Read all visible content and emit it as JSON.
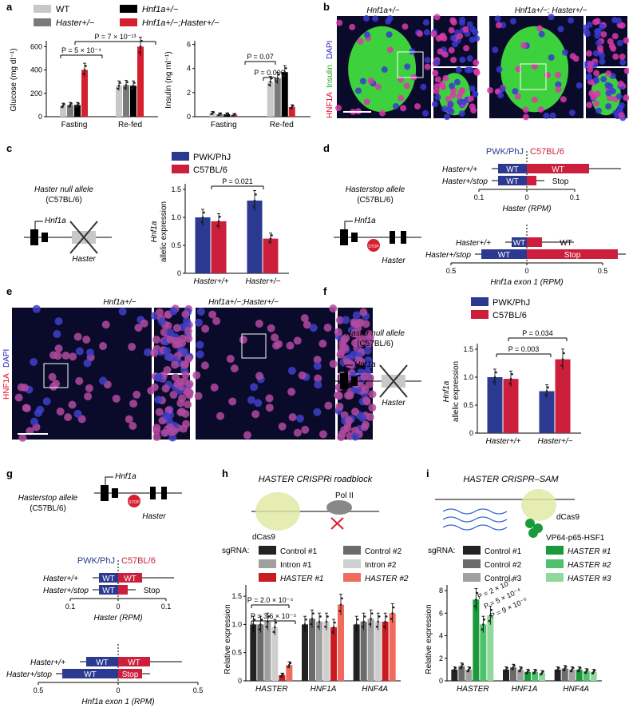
{
  "panel_letters": [
    "a",
    "b",
    "c",
    "d",
    "e",
    "f",
    "g",
    "h",
    "i"
  ],
  "colors": {
    "wt": "#c8c8c8",
    "haster_het": "#7a7a7a",
    "hnf1a_het": "#000000",
    "double_het": "#d6202f",
    "pwk": "#2b3990",
    "c57": "#cc1f3c",
    "hnf1a_red": "#e8001e",
    "green_stain": "#3dd13d"
  },
  "panel_a": {
    "legend": [
      "WT",
      "Haster+/−",
      "Hnf1a+/−",
      "Hnf1a+/−;Haster+/−"
    ],
    "glucose": {
      "ylabel": "Glucose (mg dl⁻¹)",
      "yticks": [
        "0",
        "200",
        "400",
        "600"
      ],
      "categories": [
        "Fasting",
        "Re-fed"
      ],
      "p_values": [
        "P = 5 × 10⁻⁴",
        "P = 7 × 10⁻¹³"
      ]
    },
    "insulin": {
      "ylabel": "Insulin (ng ml⁻¹)",
      "yticks": [
        "0",
        "2",
        "4",
        "6"
      ],
      "categories": [
        "Fasting",
        "Re-fed"
      ],
      "p_values": [
        "P = 0.07",
        "P = 0.006"
      ]
    }
  },
  "panel_b": {
    "titles": [
      "Hnf1a+/−",
      "Hnf1a+/−; Haster+/−"
    ],
    "side_label": [
      "HNF1A",
      "Insulin",
      "DAPI"
    ]
  },
  "panel_c": {
    "title": [
      "Haster null allele",
      "(C57BL/6)"
    ],
    "gene_labels": [
      "Hnf1a",
      "Haster"
    ],
    "legend": [
      "PWK/PhJ",
      "C57BL/6"
    ],
    "ylabel": [
      "Hnf1a",
      "allelic expression"
    ],
    "yticks": [
      "0",
      "0.5",
      "1.0",
      "1.5"
    ],
    "categories": [
      "Haster+/+",
      "Haster+/−"
    ],
    "p_value": "P = 0.021"
  },
  "panel_d": {
    "title": [
      "Hasterstop allele",
      "(C57BL/6)"
    ],
    "gene_labels": [
      "Hnf1a",
      "Haster",
      "STOP"
    ],
    "legend": [
      "PWK/PhJ",
      "C57BL/6"
    ],
    "rows": [
      "Haster+/+",
      "Haster+/stop"
    ],
    "bar_labels": [
      "WT",
      "WT",
      "WT",
      "Stop"
    ],
    "axis1": {
      "label": "Haster (RPM)",
      "ticks": [
        "0.1",
        "0",
        "0.1"
      ]
    },
    "axis2": {
      "label": "Hnf1a exon 1 (RPM)",
      "ticks": [
        "0.5",
        "0",
        "0.5"
      ]
    }
  },
  "panel_e": {
    "titles": [
      "Hnf1a+/−",
      "Hnf1a+/−;Haster+/−"
    ],
    "side_label": [
      "HNF1A",
      "DAPI"
    ]
  },
  "panel_f": {
    "title": [
      "Haster null allele",
      "(C57BL/6)"
    ],
    "gene_labels": [
      "Hnf1a",
      "Haster"
    ],
    "legend": [
      "PWK/PhJ",
      "C57BL/6"
    ],
    "ylabel": [
      "Hnf1a",
      "allelic expression"
    ],
    "yticks": [
      "0",
      "0.5",
      "1.0",
      "1.5"
    ],
    "categories": [
      "Haster+/+",
      "Haster+/−"
    ],
    "p_values": [
      "P = 0.003",
      "P = 0.034"
    ]
  },
  "panel_g": {
    "title": [
      "Hasterstop allele",
      "(C57BL/6)"
    ],
    "gene_labels": [
      "Hnf1a",
      "Haster",
      "STOP"
    ],
    "legend": [
      "PWK/PhJ",
      "C57BL/6"
    ],
    "rows": [
      "Haster+/+",
      "Haster+/stop"
    ],
    "bar_labels": [
      "WT",
      "WT",
      "WT",
      "Stop"
    ],
    "axis1": {
      "label": "Haster (RPM)",
      "ticks": [
        "0.1",
        "0",
        "0.1"
      ]
    },
    "axis2": {
      "label": "Hnf1a exon 1 (RPM)",
      "ticks": [
        "0.5",
        "0",
        "0.5"
      ]
    }
  },
  "panel_h": {
    "title": "HASTER CRISPRi roadblock",
    "diagram_labels": [
      "Pol II",
      "dCas9"
    ],
    "sgrna_label": "sgRNA:",
    "legend": [
      "Control #1",
      "Control #2",
      "Intron #1",
      "Intron #2",
      "HASTER #1",
      "HASTER #2"
    ],
    "legend_colors": [
      "#222222",
      "#6b6b6b",
      "#a0a0a0",
      "#cfcfcf",
      "#c81c22",
      "#f06a5e"
    ],
    "ylabel": "Relative expression",
    "yticks": [
      "0",
      "0.5",
      "1.0",
      "1.5"
    ],
    "categories": [
      "HASTER",
      "HNF1A",
      "HNF4A"
    ],
    "p_values": [
      "P = 2.0 × 10⁻⁴",
      "P = 3.6 × 10⁻⁵"
    ]
  },
  "panel_i": {
    "title": "HASTER CRISPR–SAM",
    "diagram_labels": [
      "dCas9",
      "VP64-p65-HSF1"
    ],
    "sgrna_label": "sgRNA:",
    "legend": [
      "Control #1",
      "Control #2",
      "Control #3",
      "HASTER #1",
      "HASTER #2",
      "HASTER #3"
    ],
    "legend_colors": [
      "#222222",
      "#6b6b6b",
      "#a0a0a0",
      "#1a9a3a",
      "#4cc26a",
      "#8fd99c"
    ],
    "ylabel": "Relative expression",
    "yticks": [
      "0",
      "2",
      "4",
      "6",
      "8"
    ],
    "categories": [
      "HASTER",
      "HNF1A",
      "HNF4A"
    ],
    "p_values": [
      "P = 2 × 10⁻⁵",
      "P = 5 × 10⁻⁴",
      "P = 9 × 10⁻⁵"
    ]
  },
  "chart_data": [
    {
      "type": "bar",
      "panel": "a-glucose",
      "categories": [
        "Fasting",
        "Re-fed"
      ],
      "series": [
        {
          "name": "WT",
          "values": [
            95,
            265
          ]
        },
        {
          "name": "Haster+/−",
          "values": [
            100,
            270
          ]
        },
        {
          "name": "Hnf1a+/−",
          "values": [
            100,
            265
          ]
        },
        {
          "name": "Hnf1a+/−;Haster+/−",
          "values": [
            400,
            600
          ]
        }
      ],
      "ylabel": "Glucose (mg dl⁻¹)",
      "ylim": [
        0,
        650
      ]
    },
    {
      "type": "bar",
      "panel": "a-insulin",
      "categories": [
        "Fasting",
        "Re-fed"
      ],
      "series": [
        {
          "name": "WT",
          "values": [
            0.3,
            2.9
          ]
        },
        {
          "name": "Haster+/−",
          "values": [
            0.2,
            3.2
          ]
        },
        {
          "name": "Hnf1a+/−",
          "values": [
            0.2,
            3.7
          ]
        },
        {
          "name": "Hnf1a+/−;Haster+/−",
          "values": [
            0.15,
            0.8
          ]
        }
      ],
      "ylabel": "Insulin (ng ml⁻¹)",
      "ylim": [
        0,
        6.3
      ]
    },
    {
      "type": "bar",
      "panel": "c",
      "categories": [
        "Haster+/+",
        "Haster+/−"
      ],
      "series": [
        {
          "name": "PWK/PhJ",
          "values": [
            1.0,
            1.3
          ]
        },
        {
          "name": "C57BL/6",
          "values": [
            0.93,
            0.62
          ]
        }
      ],
      "ylabel": "Hnf1a allelic expression",
      "ylim": [
        0,
        1.6
      ]
    },
    {
      "type": "bar",
      "panel": "d",
      "rows": [
        "Haster+/+",
        "Haster+/stop"
      ],
      "series": [
        {
          "name": "Haster PWK/PhJ",
          "values": [
            0.06,
            0.06
          ]
        },
        {
          "name": "Haster C57BL/6",
          "values": [
            0.13,
            0.02
          ]
        },
        {
          "name": "Hnf1a exon 1 PWK/PhJ",
          "values": [
            0.1,
            0.3
          ]
        },
        {
          "name": "Hnf1a exon 1 C57BL/6",
          "values": [
            0.1,
            0.6
          ]
        }
      ]
    },
    {
      "type": "bar",
      "panel": "f",
      "categories": [
        "Haster+/+",
        "Haster+/−"
      ],
      "series": [
        {
          "name": "PWK/PhJ",
          "values": [
            1.0,
            0.75
          ]
        },
        {
          "name": "C57BL/6",
          "values": [
            0.97,
            1.32
          ]
        }
      ],
      "ylabel": "Hnf1a allelic expression",
      "ylim": [
        0,
        1.6
      ]
    },
    {
      "type": "bar",
      "panel": "g",
      "rows": [
        "Haster+/+",
        "Haster+/stop"
      ],
      "series": [
        {
          "name": "Haster PWK/PhJ",
          "values": [
            0.04,
            0.04
          ]
        },
        {
          "name": "Haster C57BL/6",
          "values": [
            0.05,
            0.02
          ]
        },
        {
          "name": "Hnf1a exon 1 PWK/PhJ",
          "values": [
            0.2,
            0.35
          ]
        },
        {
          "name": "Hnf1a exon 1 C57BL/6",
          "values": [
            0.2,
            0.15
          ]
        }
      ]
    },
    {
      "type": "bar",
      "panel": "h",
      "categories": [
        "HASTER",
        "HNF1A",
        "HNF4A"
      ],
      "series": [
        {
          "name": "Control #1",
          "values": [
            1.0,
            1.0,
            1.0
          ]
        },
        {
          "name": "Control #2",
          "values": [
            1.0,
            1.1,
            1.05
          ]
        },
        {
          "name": "Intron #1",
          "values": [
            1.05,
            1.05,
            1.1
          ]
        },
        {
          "name": "Intron #2",
          "values": [
            0.95,
            1.05,
            1.05
          ]
        },
        {
          "name": "HASTER #1",
          "values": [
            0.1,
            0.95,
            1.05
          ]
        },
        {
          "name": "HASTER #2",
          "values": [
            0.28,
            1.35,
            1.2
          ]
        }
      ],
      "ylabel": "Relative expression",
      "ylim": [
        0,
        1.7
      ]
    },
    {
      "type": "bar",
      "panel": "i",
      "categories": [
        "HASTER",
        "HNF1A",
        "HNF4A"
      ],
      "series": [
        {
          "name": "Control #1",
          "values": [
            1.0,
            1.0,
            1.0
          ]
        },
        {
          "name": "Control #2",
          "values": [
            1.3,
            1.2,
            1.1
          ]
        },
        {
          "name": "Control #3",
          "values": [
            1.0,
            1.0,
            1.0
          ]
        },
        {
          "name": "HASTER #1",
          "values": [
            7.2,
            0.8,
            1.0
          ]
        },
        {
          "name": "HASTER #2",
          "values": [
            5.0,
            0.8,
            0.85
          ]
        },
        {
          "name": "HASTER #3",
          "values": [
            5.8,
            0.7,
            0.8
          ]
        }
      ],
      "ylabel": "Relative expression",
      "ylim": [
        0,
        8.5
      ]
    }
  ]
}
